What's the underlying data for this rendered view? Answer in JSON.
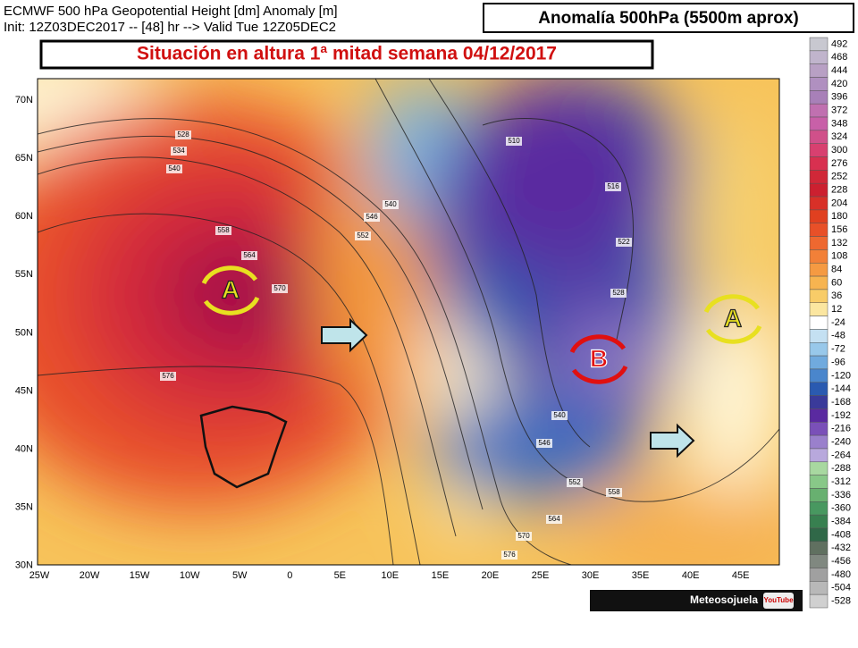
{
  "header": {
    "line1": "ECMWF 500 hPa Geopotential Height [dm] Anomaly [m]",
    "line2": "Init: 12Z03DEC2017 -- [48] hr --> Valid Tue 12Z05DEC2",
    "badge": "Anomalía 500hPa (5500m aprox)"
  },
  "banner": "Situación en altura 1ª mitad semana 04/12/2017",
  "axes": {
    "lat": [
      "70N",
      "65N",
      "60N",
      "55N",
      "50N",
      "45N",
      "40N",
      "35N",
      "30N"
    ],
    "lon": [
      "25W",
      "20W",
      "15W",
      "10W",
      "5W",
      "0",
      "5E",
      "10E",
      "15E",
      "20E",
      "25E",
      "30E",
      "35E",
      "40E",
      "45E"
    ]
  },
  "contour_labels": [
    528,
    534,
    540,
    558,
    564,
    570,
    576,
    510,
    516,
    522,
    528,
    540,
    546,
    552,
    540,
    546,
    552,
    558,
    564,
    570,
    576
  ],
  "colorbar": {
    "labels": [
      492,
      468,
      444,
      420,
      396,
      372,
      348,
      324,
      300,
      276,
      252,
      228,
      204,
      180,
      156,
      132,
      108,
      84,
      60,
      36,
      12,
      -24,
      -48,
      -72,
      -96,
      -120,
      -144,
      -168,
      -192,
      -216,
      -240,
      -264,
      -288,
      -312,
      -336,
      -360,
      -384,
      -408,
      -432,
      -456,
      -480,
      -504,
      -528
    ]
  },
  "markers": [
    "A",
    "B",
    "A"
  ],
  "footer": {
    "brand": "Meteosojuela",
    "youtube": "YouTube"
  }
}
